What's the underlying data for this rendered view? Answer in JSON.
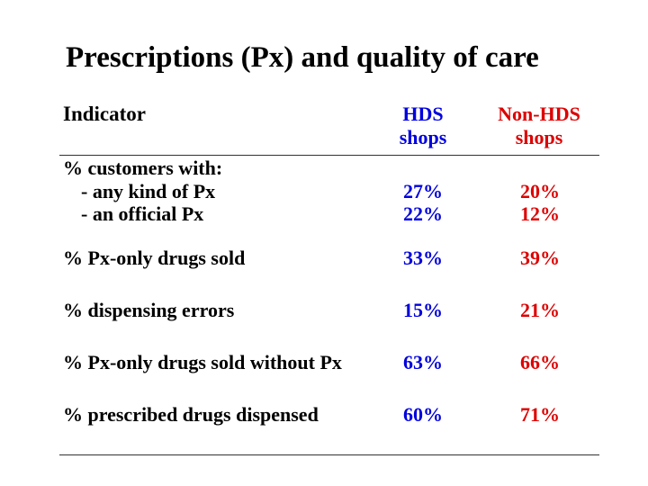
{
  "slide": {
    "title": "Prescriptions (Px) and quality of care"
  },
  "table": {
    "headers": {
      "indicator": "Indicator",
      "hds_line1": "HDS",
      "hds_line2": "shops",
      "non_hds_line1": "Non-HDS",
      "non_hds_line2": "shops"
    },
    "group_label": "% customers with:",
    "rows": [
      {
        "label": "- any kind of Px",
        "hds": "27%",
        "non_hds": "20%"
      },
      {
        "label": "- an official Px",
        "hds": "22%",
        "non_hds": "12%"
      },
      {
        "label": "% Px-only drugs sold",
        "hds": "33%",
        "non_hds": "39%"
      },
      {
        "label": "% dispensing errors",
        "hds": "15%",
        "non_hds": "21%"
      },
      {
        "label": "% Px-only drugs sold without Px",
        "hds": "63%",
        "non_hds": "66%"
      },
      {
        "label": "% prescribed drugs dispensed",
        "hds": "60%",
        "non_hds": "71%"
      }
    ]
  },
  "colors": {
    "hds": "#0000dd",
    "non_hds": "#dd0000"
  }
}
